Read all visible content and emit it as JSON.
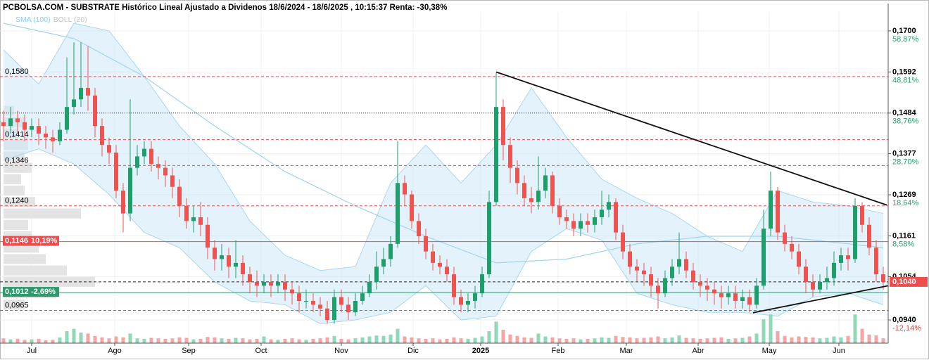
{
  "chart_data": {
    "type": "candlestick",
    "title": "PCBOLSA.COM - SUBSTRATE Histórico Lineal Ajustado a Dividenos 18/6/2024 - 18/6/2025 , 10:15:37 Renta: -30,38%",
    "legend": [
      "SMA (100)",
      "BOLL (20)"
    ],
    "up_color": "#1e9e6a",
    "down_color": "#ef5350",
    "xlim": [
      -0.5,
      125.7
    ],
    "xticks": [
      {
        "value": 4,
        "label": "Jul"
      },
      {
        "value": 15.8,
        "label": "Ago"
      },
      {
        "value": 26.3,
        "label": "Sep"
      },
      {
        "value": 36.6,
        "label": "Oct"
      },
      {
        "value": 48,
        "label": "Nov"
      },
      {
        "value": 58.2,
        "label": "Dic"
      },
      {
        "value": 67.8,
        "label": "2025"
      },
      {
        "value": 78.8,
        "label": "Feb"
      },
      {
        "value": 88.5,
        "label": "Mar"
      },
      {
        "value": 98.7,
        "label": "Abr"
      },
      {
        "value": 108.8,
        "label": "May"
      },
      {
        "value": 118.7,
        "label": "Jun"
      }
    ],
    "ylim": [
      0.0879,
      0.1772
    ],
    "yticks": [
      {
        "value": 0.17,
        "label": "0,1700"
      },
      {
        "value": 0.1592,
        "label": "0,1592"
      },
      {
        "value": 0.1484,
        "label": "0,1484"
      },
      {
        "value": 0.1377,
        "label": "0,1377"
      },
      {
        "value": 0.1269,
        "label": "0,1269"
      },
      {
        "value": 0.1161,
        "label": "0,1161"
      },
      {
        "value": 0.1054,
        "label": "0,1054"
      },
      {
        "value": 0.094,
        "label": "0,0940"
      }
    ],
    "yticks_pct": [
      "58,87%",
      "48,81%",
      "38,76%",
      "28,70%",
      "18,64%",
      "8,58%",
      null,
      "-12,14%"
    ],
    "grid": true,
    "open": [
      0.146,
      0.145,
      0.147,
      0.146,
      0.144,
      0.145,
      0.143,
      0.142,
      0.141,
      0.144,
      0.15,
      0.152,
      0.155,
      0.153,
      0.145,
      0.14,
      0.138,
      0.128,
      0.122,
      0.134,
      0.137,
      0.139,
      0.135,
      0.134,
      0.132,
      0.129,
      0.124,
      0.12,
      0.121,
      0.119,
      0.113,
      0.11,
      0.111,
      0.108,
      0.109,
      0.106,
      0.104,
      0.103,
      0.104,
      0.103,
      0.104,
      0.102,
      0.101,
      0.099,
      0.099,
      0.098,
      0.097,
      0.094,
      0.1,
      0.098,
      0.096,
      0.099,
      0.101,
      0.104,
      0.108,
      0.11,
      0.114,
      0.13,
      0.127,
      0.12,
      0.116,
      0.112,
      0.109,
      0.108,
      0.106,
      0.1,
      0.098,
      0.099,
      0.101,
      0.106,
      0.125,
      0.15,
      0.14,
      0.134,
      0.13,
      0.126,
      0.125,
      0.128,
      0.132,
      0.124,
      0.121,
      0.12,
      0.118,
      0.12,
      0.119,
      0.121,
      0.123,
      0.125,
      0.117,
      0.112,
      0.108,
      0.107,
      0.106,
      0.103,
      0.101,
      0.105,
      0.108,
      0.11,
      0.107,
      0.104,
      0.103,
      0.102,
      0.101,
      0.1,
      0.101,
      0.099,
      0.1,
      0.098,
      0.103,
      0.118,
      0.128,
      0.117,
      0.114,
      0.112,
      0.108,
      0.104,
      0.102,
      0.104,
      0.105,
      0.109,
      0.111,
      0.11,
      0.124,
      0.119,
      0.113,
      0.106
    ],
    "high": [
      0.149,
      0.15,
      0.149,
      0.148,
      0.147,
      0.147,
      0.145,
      0.144,
      0.146,
      0.163,
      0.167,
      0.167,
      0.166,
      0.155,
      0.147,
      0.142,
      0.14,
      0.13,
      0.152,
      0.14,
      0.141,
      0.141,
      0.137,
      0.136,
      0.134,
      0.131,
      0.126,
      0.124,
      0.125,
      0.121,
      0.115,
      0.114,
      0.113,
      0.115,
      0.111,
      0.108,
      0.107,
      0.106,
      0.106,
      0.106,
      0.106,
      0.104,
      0.103,
      0.102,
      0.101,
      0.1,
      0.099,
      0.102,
      0.102,
      0.1,
      0.101,
      0.103,
      0.106,
      0.112,
      0.113,
      0.116,
      0.141,
      0.132,
      0.128,
      0.122,
      0.118,
      0.114,
      0.111,
      0.11,
      0.108,
      0.102,
      0.101,
      0.103,
      0.108,
      0.128,
      0.159,
      0.152,
      0.142,
      0.136,
      0.132,
      0.129,
      0.137,
      0.134,
      0.133,
      0.126,
      0.123,
      0.122,
      0.122,
      0.122,
      0.123,
      0.128,
      0.127,
      0.126,
      0.119,
      0.114,
      0.11,
      0.109,
      0.108,
      0.105,
      0.107,
      0.11,
      0.117,
      0.112,
      0.109,
      0.106,
      0.105,
      0.104,
      0.103,
      0.103,
      0.103,
      0.102,
      0.102,
      0.105,
      0.123,
      0.133,
      0.129,
      0.119,
      0.116,
      0.114,
      0.11,
      0.106,
      0.106,
      0.108,
      0.112,
      0.113,
      0.113,
      0.126,
      0.125,
      0.121,
      0.115,
      0.108
    ],
    "low": [
      0.141,
      0.143,
      0.143,
      0.141,
      0.142,
      0.14,
      0.139,
      0.138,
      0.14,
      0.143,
      0.148,
      0.15,
      0.149,
      0.142,
      0.137,
      0.135,
      0.126,
      0.117,
      0.12,
      0.132,
      0.135,
      0.133,
      0.131,
      0.129,
      0.126,
      0.121,
      0.118,
      0.117,
      0.116,
      0.11,
      0.107,
      0.107,
      0.105,
      0.105,
      0.103,
      0.101,
      0.1,
      0.101,
      0.1,
      0.101,
      0.099,
      0.098,
      0.096,
      0.097,
      0.096,
      0.095,
      0.093,
      0.093,
      0.096,
      0.094,
      0.095,
      0.098,
      0.1,
      0.102,
      0.106,
      0.108,
      0.113,
      0.124,
      0.118,
      0.114,
      0.11,
      0.107,
      0.106,
      0.104,
      0.098,
      0.096,
      0.096,
      0.097,
      0.1,
      0.105,
      0.124,
      0.136,
      0.13,
      0.127,
      0.124,
      0.122,
      0.123,
      0.126,
      0.122,
      0.119,
      0.118,
      0.116,
      0.116,
      0.117,
      0.117,
      0.119,
      0.121,
      0.115,
      0.11,
      0.106,
      0.104,
      0.103,
      0.1,
      0.097,
      0.1,
      0.103,
      0.106,
      0.105,
      0.102,
      0.1,
      0.099,
      0.098,
      0.097,
      0.098,
      0.097,
      0.097,
      0.096,
      0.097,
      0.102,
      0.116,
      0.115,
      0.112,
      0.11,
      0.106,
      0.101,
      0.1,
      0.101,
      0.102,
      0.103,
      0.107,
      0.107,
      0.109,
      0.117,
      0.111,
      0.104,
      0.102
    ],
    "close": [
      0.145,
      0.147,
      0.146,
      0.144,
      0.145,
      0.143,
      0.142,
      0.141,
      0.144,
      0.15,
      0.152,
      0.155,
      0.153,
      0.145,
      0.14,
      0.138,
      0.128,
      0.122,
      0.134,
      0.137,
      0.139,
      0.135,
      0.134,
      0.132,
      0.129,
      0.124,
      0.12,
      0.121,
      0.119,
      0.113,
      0.11,
      0.111,
      0.108,
      0.109,
      0.106,
      0.104,
      0.103,
      0.104,
      0.103,
      0.104,
      0.102,
      0.101,
      0.099,
      0.099,
      0.098,
      0.097,
      0.094,
      0.1,
      0.098,
      0.096,
      0.099,
      0.101,
      0.104,
      0.108,
      0.11,
      0.114,
      0.13,
      0.127,
      0.12,
      0.116,
      0.112,
      0.109,
      0.108,
      0.106,
      0.1,
      0.098,
      0.099,
      0.101,
      0.106,
      0.125,
      0.15,
      0.14,
      0.134,
      0.13,
      0.126,
      0.125,
      0.128,
      0.132,
      0.124,
      0.121,
      0.12,
      0.118,
      0.12,
      0.119,
      0.121,
      0.123,
      0.125,
      0.117,
      0.112,
      0.108,
      0.107,
      0.106,
      0.103,
      0.101,
      0.105,
      0.108,
      0.11,
      0.107,
      0.104,
      0.103,
      0.102,
      0.101,
      0.1,
      0.101,
      0.099,
      0.1,
      0.098,
      0.103,
      0.118,
      0.128,
      0.117,
      0.114,
      0.112,
      0.108,
      0.104,
      0.102,
      0.104,
      0.105,
      0.109,
      0.111,
      0.11,
      0.124,
      0.119,
      0.113,
      0.106,
      0.104
    ],
    "volume": [
      10,
      8,
      9,
      7,
      8,
      9,
      6,
      7,
      12,
      25,
      30,
      22,
      20,
      15,
      12,
      10,
      14,
      12,
      20,
      10,
      9,
      11,
      10,
      9,
      10,
      12,
      11,
      8,
      9,
      13,
      12,
      10,
      9,
      11,
      10,
      8,
      9,
      14,
      8,
      7,
      9,
      10,
      8,
      7,
      9,
      10,
      12,
      15,
      9,
      8,
      10,
      12,
      14,
      16,
      15,
      18,
      30,
      14,
      12,
      10,
      9,
      10,
      8,
      9,
      12,
      10,
      9,
      11,
      14,
      25,
      45,
      28,
      18,
      15,
      12,
      11,
      20,
      14,
      12,
      10,
      9,
      10,
      8,
      9,
      10,
      12,
      11,
      15,
      13,
      12,
      10,
      11,
      12,
      14,
      10,
      12,
      16,
      11,
      10,
      9,
      10,
      11,
      12,
      9,
      10,
      11,
      14,
      20,
      50,
      60,
      25,
      15,
      12,
      14,
      13,
      12,
      10,
      11,
      14,
      12,
      15,
      60,
      30,
      18,
      16,
      10
    ],
    "vlim": [
      0,
      100
    ],
    "sma": {
      "color": "#9fd3f0",
      "x": [
        0,
        10,
        20,
        30,
        40,
        50,
        60,
        70,
        80,
        90,
        100,
        110,
        120,
        125
      ],
      "values": [
        0.172,
        0.168,
        0.158,
        0.145,
        0.133,
        0.124,
        0.116,
        0.109,
        0.11,
        0.114,
        0.116,
        0.116,
        0.114,
        0.113
      ]
    },
    "boll": {
      "color": "#cde9f8",
      "x": [
        0,
        5,
        10,
        15,
        20,
        25,
        30,
        35,
        40,
        45,
        50,
        55,
        60,
        65,
        70,
        75,
        80,
        85,
        90,
        95,
        100,
        105,
        110,
        115,
        120,
        125
      ],
      "upper": [
        0.165,
        0.156,
        0.172,
        0.17,
        0.158,
        0.145,
        0.135,
        0.12,
        0.111,
        0.107,
        0.108,
        0.13,
        0.14,
        0.13,
        0.14,
        0.155,
        0.142,
        0.131,
        0.126,
        0.122,
        0.116,
        0.112,
        0.128,
        0.125,
        0.124,
        0.122
      ],
      "lower": [
        0.136,
        0.139,
        0.135,
        0.127,
        0.117,
        0.113,
        0.104,
        0.099,
        0.098,
        0.093,
        0.094,
        0.096,
        0.103,
        0.094,
        0.095,
        0.112,
        0.118,
        0.115,
        0.101,
        0.098,
        0.096,
        0.096,
        0.095,
        0.1,
        0.101,
        0.098
      ]
    },
    "levels": [
      {
        "value": 0.158,
        "label": "0,1580",
        "style": "dashed",
        "color": "#e05050"
      },
      {
        "value": 0.1414,
        "label": "0,1414",
        "style": "dashed",
        "color": "#e05050"
      },
      {
        "value": 0.1346,
        "label": "0,1346",
        "style": "dashed",
        "color": "#e05050"
      },
      {
        "value": 0.124,
        "label": "0,1240",
        "style": "dashed",
        "color": "#e05050"
      },
      {
        "value": 0.0965,
        "label": "0,0965",
        "style": "dashed",
        "color": "#e05050"
      },
      {
        "value": 0.1484,
        "style": "dotted",
        "color": "#222222"
      },
      {
        "value": 0.1146,
        "label": "0,1146",
        "pct": "10,19%",
        "style": "solid",
        "color": "#ef4d4d",
        "box": true
      },
      {
        "value": 0.1012,
        "label": "0,1012",
        "pct": "-2,69%",
        "style": "solid",
        "color": "#2e9a6c",
        "box": true
      },
      {
        "value": 0.104,
        "label": "0,1040",
        "style": "dashed",
        "color": "#222222",
        "right_box": "#ef4d4d"
      }
    ],
    "trendlines": [
      {
        "x": [
          70,
          125.5
        ],
        "values": [
          0.1592,
          0.1242
        ]
      },
      {
        "x": [
          106.5,
          125.7
        ],
        "values": [
          0.0959,
          0.103
        ]
      }
    ],
    "volume_profile": {
      "prices": [
        0.098,
        0.101,
        0.104,
        0.107,
        0.11,
        0.113,
        0.116,
        0.119,
        0.122,
        0.125,
        0.128,
        0.131,
        0.134,
        0.137,
        0.14,
        0.143,
        0.146,
        0.149
      ],
      "values": [
        30,
        75,
        130,
        90,
        60,
        50,
        40,
        35,
        110,
        45,
        30,
        25,
        40,
        30,
        35,
        20,
        30,
        15
      ]
    }
  }
}
